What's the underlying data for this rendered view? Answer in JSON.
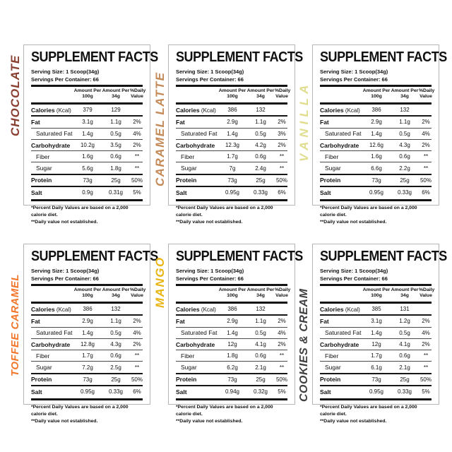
{
  "page": {
    "background": "#ffffff",
    "border_color": "#b5b5b5"
  },
  "panels": [
    {
      "flavor": "CHOCOLATE",
      "flavor_color": "#8A4031",
      "title": "SUPPLEMENT FACTS",
      "serving_size": "Serving Size: 1 Scoop(34g)",
      "servings_per_container": "Servings Per Container: 66",
      "columns": [
        [
          "Amount Per",
          "100g"
        ],
        [
          "Amount Per",
          "34g"
        ],
        [
          "%Daily",
          "Value"
        ]
      ],
      "rows": [
        {
          "label": "Calories",
          "note": "(Kcal)",
          "v100": "379",
          "v34": "129",
          "dv": "",
          "bold": true,
          "indent": false,
          "sep": "none"
        },
        {
          "label": "Fat",
          "note": "",
          "v100": "3.1g",
          "v34": "1.1g",
          "dv": "2%",
          "bold": true,
          "indent": false,
          "sep": "med"
        },
        {
          "label": "Saturated Fat",
          "note": "",
          "v100": "1.4g",
          "v34": "0.5g",
          "dv": "4%",
          "bold": false,
          "indent": true,
          "sep": "thin"
        },
        {
          "label": "Carbohydrate",
          "note": "",
          "v100": "10.2g",
          "v34": "3.5g",
          "dv": "2%",
          "bold": true,
          "indent": false,
          "sep": "thin"
        },
        {
          "label": "Fiber",
          "note": "",
          "v100": "1.6g",
          "v34": "0.6g",
          "dv": "**",
          "bold": false,
          "indent": true,
          "sep": "thin"
        },
        {
          "label": "Sugar",
          "note": "",
          "v100": "5.6g",
          "v34": "1.8g",
          "dv": "**",
          "bold": false,
          "indent": true,
          "sep": "thin"
        },
        {
          "label": "Protein",
          "note": "",
          "v100": "73g",
          "v34": "25g",
          "dv": "50%",
          "bold": true,
          "indent": false,
          "sep": "med"
        },
        {
          "label": "Salt",
          "note": "",
          "v100": "0.9g",
          "v34": "0.31g",
          "dv": "5%",
          "bold": true,
          "indent": false,
          "sep": "med"
        }
      ],
      "footnotes": [
        "*Percent Daily Values are based on a 2,000 calorie diet.",
        "**Daily value not established."
      ]
    },
    {
      "flavor": "CARAMEL LATTE",
      "flavor_color": "#C48A58",
      "title": "SUPPLEMENT FACTS",
      "serving_size": "Serving Size: 1 Scoop(34g)",
      "servings_per_container": "Servings Per Container: 66",
      "columns": [
        [
          "Amount Per",
          "100g"
        ],
        [
          "Amount Per",
          "34g"
        ],
        [
          "%Daily",
          "Value"
        ]
      ],
      "rows": [
        {
          "label": "Calories",
          "note": "(Kcal)",
          "v100": "386",
          "v34": "132",
          "dv": "",
          "bold": true,
          "indent": false,
          "sep": "none"
        },
        {
          "label": "Fat",
          "note": "",
          "v100": "2.9g",
          "v34": "1.1g",
          "dv": "2%",
          "bold": true,
          "indent": false,
          "sep": "med"
        },
        {
          "label": "Saturated Fat",
          "note": "",
          "v100": "1.4g",
          "v34": "0.5g",
          "dv": "3%",
          "bold": false,
          "indent": true,
          "sep": "thin"
        },
        {
          "label": "Carbohydrate",
          "note": "",
          "v100": "12.3g",
          "v34": "4.2g",
          "dv": "2%",
          "bold": true,
          "indent": false,
          "sep": "thin"
        },
        {
          "label": "Fiber",
          "note": "",
          "v100": "1.7g",
          "v34": "0.6g",
          "dv": "**",
          "bold": false,
          "indent": true,
          "sep": "thin"
        },
        {
          "label": "Sugar",
          "note": "",
          "v100": "7g",
          "v34": "2.4g",
          "dv": "**",
          "bold": false,
          "indent": true,
          "sep": "thin"
        },
        {
          "label": "Protein",
          "note": "",
          "v100": "73g",
          "v34": "25g",
          "dv": "50%",
          "bold": true,
          "indent": false,
          "sep": "med"
        },
        {
          "label": "Salt",
          "note": "",
          "v100": "0.95g",
          "v34": "0.33g",
          "dv": "6%",
          "bold": true,
          "indent": false,
          "sep": "med"
        }
      ],
      "footnotes": [
        "*Percent Daily Values are based on a 2,000 calorie diet.",
        "**Daily value not established."
      ]
    },
    {
      "flavor": "VANILLA",
      "flavor_color": "#E0DD8E",
      "title": "SUPPLEMENT FACTS",
      "serving_size": "Serving Size: 1 Scoop(34g)",
      "servings_per_container": "Servings Per Container: 66",
      "columns": [
        [
          "Amount Per",
          "100g"
        ],
        [
          "Amount Per",
          "34g"
        ],
        [
          "%Daily",
          "Value"
        ]
      ],
      "rows": [
        {
          "label": "Calories",
          "note": "(Kcal)",
          "v100": "386",
          "v34": "132",
          "dv": "",
          "bold": true,
          "indent": false,
          "sep": "none"
        },
        {
          "label": "Fat",
          "note": "",
          "v100": "2.9g",
          "v34": "1.1g",
          "dv": "2%",
          "bold": true,
          "indent": false,
          "sep": "med"
        },
        {
          "label": "Saturated Fat",
          "note": "",
          "v100": "1.4g",
          "v34": "0.5g",
          "dv": "4%",
          "bold": false,
          "indent": true,
          "sep": "thin"
        },
        {
          "label": "Carbohydrate",
          "note": "",
          "v100": "12.6g",
          "v34": "4.3g",
          "dv": "2%",
          "bold": true,
          "indent": false,
          "sep": "thin"
        },
        {
          "label": "Fiber",
          "note": "",
          "v100": "1.6g",
          "v34": "0.6g",
          "dv": "**",
          "bold": false,
          "indent": true,
          "sep": "thin"
        },
        {
          "label": "Sugar",
          "note": "",
          "v100": "6.6g",
          "v34": "2.2g",
          "dv": "**",
          "bold": false,
          "indent": true,
          "sep": "thin"
        },
        {
          "label": "Protein",
          "note": "",
          "v100": "73g",
          "v34": "25g",
          "dv": "50%",
          "bold": true,
          "indent": false,
          "sep": "med"
        },
        {
          "label": "Salt",
          "note": "",
          "v100": "0.95g",
          "v34": "0.33g",
          "dv": "6%",
          "bold": true,
          "indent": false,
          "sep": "med"
        }
      ],
      "footnotes": [
        "*Percent Daily Values are based on a 2,000 calorie diet.",
        "**Daily value not established."
      ]
    },
    {
      "flavor": "TOFFEE CARAMEL",
      "flavor_color": "#F2762A",
      "title": "SUPPLEMENT FACTS",
      "serving_size": "Serving Size: 1 Scoop(34g)",
      "servings_per_container": "Servings Per Container: 66",
      "columns": [
        [
          "Amount Per",
          "100g"
        ],
        [
          "Amount Per",
          "34g"
        ],
        [
          "%Daily",
          "Value"
        ]
      ],
      "rows": [
        {
          "label": "Calories",
          "note": "(Kcal)",
          "v100": "386",
          "v34": "132",
          "dv": "",
          "bold": true,
          "indent": false,
          "sep": "none"
        },
        {
          "label": "Fat",
          "note": "",
          "v100": "2.9g",
          "v34": "1.1g",
          "dv": "2%",
          "bold": true,
          "indent": false,
          "sep": "med"
        },
        {
          "label": "Saturated Fat",
          "note": "",
          "v100": "1.4g",
          "v34": "0.5g",
          "dv": "4%",
          "bold": false,
          "indent": true,
          "sep": "thin"
        },
        {
          "label": "Carbohydrate",
          "note": "",
          "v100": "12.8g",
          "v34": "4.3g",
          "dv": "2%",
          "bold": true,
          "indent": false,
          "sep": "thin"
        },
        {
          "label": "Fiber",
          "note": "",
          "v100": "1.7g",
          "v34": "0.6g",
          "dv": "**",
          "bold": false,
          "indent": true,
          "sep": "thin"
        },
        {
          "label": "Sugar",
          "note": "",
          "v100": "7.2g",
          "v34": "2.5g",
          "dv": "**",
          "bold": false,
          "indent": true,
          "sep": "thin"
        },
        {
          "label": "Protein",
          "note": "",
          "v100": "73g",
          "v34": "25g",
          "dv": "50%",
          "bold": true,
          "indent": false,
          "sep": "med"
        },
        {
          "label": "Salt",
          "note": "",
          "v100": "0.95g",
          "v34": "0.33g",
          "dv": "6%",
          "bold": true,
          "indent": false,
          "sep": "med"
        }
      ],
      "footnotes": [
        "*Percent Daily Values are based on a 2,000 calorie diet.",
        "**Daily value not established."
      ]
    },
    {
      "flavor": "MANGO",
      "flavor_color": "#E8B513",
      "title": "SUPPLEMENT FACTS",
      "serving_size": "Serving Size: 1 Scoop(34g)",
      "servings_per_container": "Servings Per Container: 66",
      "columns": [
        [
          "Amount Per",
          "100g"
        ],
        [
          "Amount Per",
          "34g"
        ],
        [
          "%Daily",
          "Value"
        ]
      ],
      "rows": [
        {
          "label": "Calories",
          "note": "(Kcal)",
          "v100": "386",
          "v34": "132",
          "dv": "",
          "bold": true,
          "indent": false,
          "sep": "none"
        },
        {
          "label": "Fat",
          "note": "",
          "v100": "2.9g",
          "v34": "1.1g",
          "dv": "2%",
          "bold": true,
          "indent": false,
          "sep": "med"
        },
        {
          "label": "Saturated Fat",
          "note": "",
          "v100": "1.4g",
          "v34": "0.5g",
          "dv": "4%",
          "bold": false,
          "indent": true,
          "sep": "thin"
        },
        {
          "label": "Carbohydrate",
          "note": "",
          "v100": "12g",
          "v34": "4.1g",
          "dv": "2%",
          "bold": true,
          "indent": false,
          "sep": "thin"
        },
        {
          "label": "Fiber",
          "note": "",
          "v100": "1.8g",
          "v34": "0.6g",
          "dv": "**",
          "bold": false,
          "indent": true,
          "sep": "thin"
        },
        {
          "label": "Sugar",
          "note": "",
          "v100": "6.2g",
          "v34": "2.1g",
          "dv": "**",
          "bold": false,
          "indent": true,
          "sep": "thin"
        },
        {
          "label": "Protein",
          "note": "",
          "v100": "73g",
          "v34": "25g",
          "dv": "50%",
          "bold": true,
          "indent": false,
          "sep": "med"
        },
        {
          "label": "Salt",
          "note": "",
          "v100": "0.94g",
          "v34": "0.32g",
          "dv": "5%",
          "bold": true,
          "indent": false,
          "sep": "med"
        }
      ],
      "footnotes": [
        "*Percent Daily Values are based on a 2,000 calorie diet.",
        "**Daily value not established."
      ]
    },
    {
      "flavor": "COOKIES & CREAM",
      "flavor_color": "#404042",
      "title": "SUPPLEMENT FACTS",
      "serving_size": "Serving Size: 1 Scoop(34g)",
      "servings_per_container": "Servings Per Container: 66",
      "columns": [
        [
          "Amount Per",
          "100g"
        ],
        [
          "Amount Per",
          "34g"
        ],
        [
          "%Daily",
          "Value"
        ]
      ],
      "rows": [
        {
          "label": "Calories",
          "note": "(Kcal)",
          "v100": "385",
          "v34": "131",
          "dv": "",
          "bold": true,
          "indent": false,
          "sep": "none"
        },
        {
          "label": "Fat",
          "note": "",
          "v100": "3.1g",
          "v34": "1.2g",
          "dv": "2%",
          "bold": true,
          "indent": false,
          "sep": "med"
        },
        {
          "label": "Saturated Fat",
          "note": "",
          "v100": "1.4g",
          "v34": "0.5g",
          "dv": "4%",
          "bold": false,
          "indent": true,
          "sep": "thin"
        },
        {
          "label": "Carbohydrate",
          "note": "",
          "v100": "12g",
          "v34": "4.1g",
          "dv": "2%",
          "bold": true,
          "indent": false,
          "sep": "thin"
        },
        {
          "label": "Fiber",
          "note": "",
          "v100": "1.7g",
          "v34": "0.6g",
          "dv": "**",
          "bold": false,
          "indent": true,
          "sep": "thin"
        },
        {
          "label": "Sugar",
          "note": "",
          "v100": "6.1g",
          "v34": "2.1g",
          "dv": "**",
          "bold": false,
          "indent": true,
          "sep": "thin"
        },
        {
          "label": "Protein",
          "note": "",
          "v100": "73g",
          "v34": "25g",
          "dv": "50%",
          "bold": true,
          "indent": false,
          "sep": "med"
        },
        {
          "label": "Salt",
          "note": "",
          "v100": "0.95g",
          "v34": "0.33g",
          "dv": "5%",
          "bold": true,
          "indent": false,
          "sep": "med"
        }
      ],
      "footnotes": [
        "*Percent Daily Values are based on a 2,000 calorie diet.",
        "**Daily value not established."
      ]
    }
  ]
}
